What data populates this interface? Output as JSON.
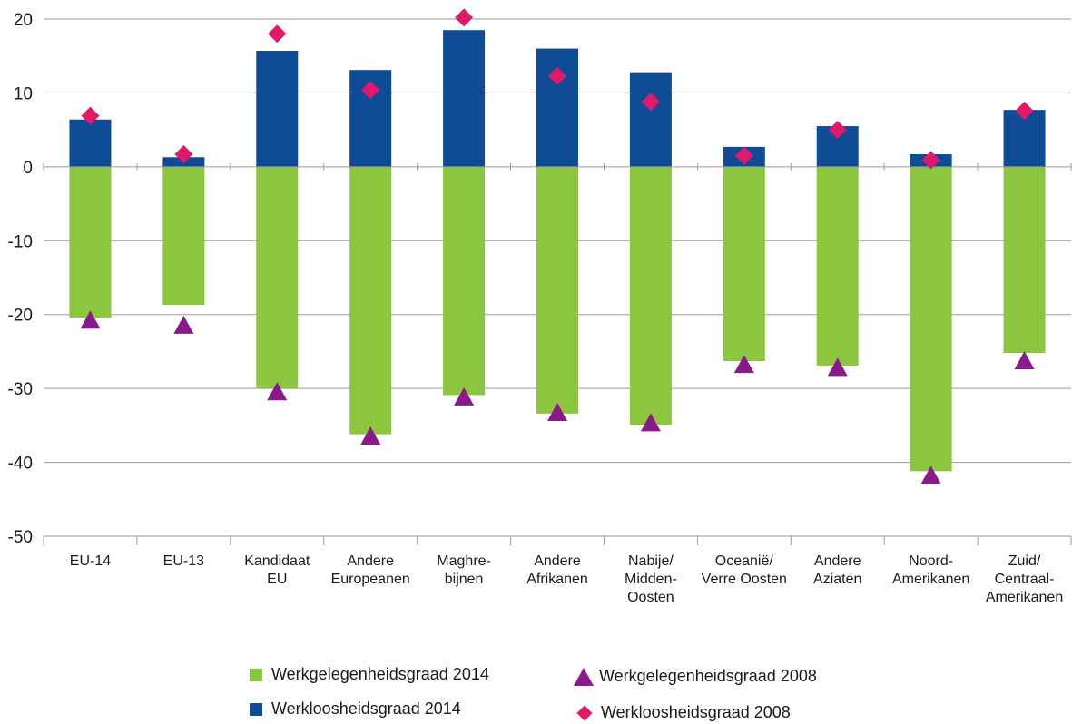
{
  "colors": {
    "employment_2014": "#8cc63f",
    "unemployment_2014": "#0e4c96",
    "employment_2008": "#8a1a8a",
    "unemployment_2008": "#e0196b",
    "grid": "#9a9a9a",
    "text": "#1a1a1a"
  },
  "legend": {
    "employment_2014": "Werkgelegenheidsgraad 2014",
    "unemployment_2014": "Werkloosheidsgraad 2014",
    "employment_2008": "Werkgelegenheidsgraad 2008",
    "unemployment_2008": "Werkloosheidsgraad 2008"
  },
  "chart_data": {
    "type": "bar",
    "categories": [
      [
        "EU-14"
      ],
      [
        "EU-13"
      ],
      [
        "Kandidaat",
        "EU"
      ],
      [
        "Andere",
        "Europeanen"
      ],
      [
        "Maghre-",
        "bijnen"
      ],
      [
        "Andere",
        "Afrikanen"
      ],
      [
        "Nabije/",
        "Midden-",
        "Oosten"
      ],
      [
        "Oceanië/",
        "Verre Oosten"
      ],
      [
        "Andere",
        "Aziaten"
      ],
      [
        "Noord-",
        "Amerikanen"
      ],
      [
        "Zuid/",
        "Centraal-",
        "Amerikanen"
      ]
    ],
    "ylim": [
      -50,
      20
    ],
    "yticks": [
      20,
      10,
      0,
      -10,
      -20,
      -30,
      -40,
      -50
    ],
    "grid": true,
    "legend_position": "bottom",
    "series": [
      {
        "name": "Werkgelegenheidsgraad 2014",
        "kind": "bar",
        "values": [
          -20.4,
          -18.7,
          -30.0,
          -36.2,
          -30.9,
          -33.4,
          -34.9,
          -26.3,
          -26.9,
          -41.2,
          -25.2
        ]
      },
      {
        "name": "Werkloosheidsgraad 2014",
        "kind": "bar",
        "values": [
          6.4,
          1.3,
          15.7,
          13.1,
          18.5,
          16.0,
          12.8,
          2.7,
          5.5,
          1.7,
          7.7
        ]
      },
      {
        "name": "Werkgelegenheidsgraad 2008",
        "kind": "triangle",
        "values": [
          -20.8,
          -21.5,
          -30.5,
          -36.5,
          -31.2,
          -33.3,
          -34.7,
          -26.8,
          -27.2,
          -41.8,
          -26.3
        ]
      },
      {
        "name": "Werkloosheidsgraad 2008",
        "kind": "diamond",
        "values": [
          6.9,
          1.7,
          18.0,
          10.4,
          20.2,
          12.3,
          8.8,
          1.5,
          5.0,
          0.9,
          7.6
        ]
      }
    ]
  }
}
